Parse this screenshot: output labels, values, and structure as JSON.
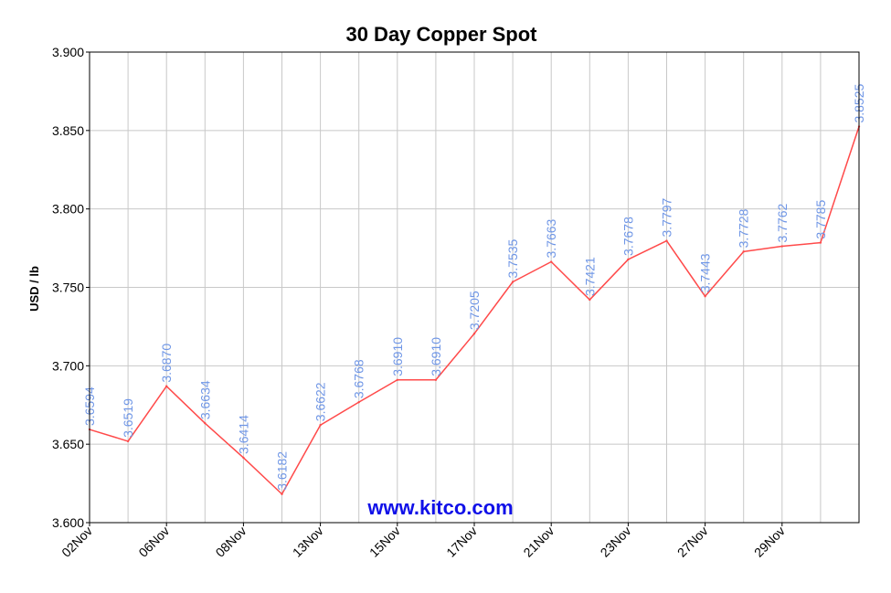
{
  "chart_data": {
    "type": "line",
    "title": "30 Day Copper Spot",
    "xlabel": "",
    "ylabel": "USD / lb",
    "watermark": "www.kitco.com",
    "ylim": [
      3.6,
      3.9
    ],
    "y_ticks": [
      "3.900",
      "3.850",
      "3.800",
      "3.750",
      "3.700",
      "3.650",
      "3.600"
    ],
    "x_tick_labels": [
      "02Nov",
      "06Nov",
      "08Nov",
      "13Nov",
      "15Nov",
      "17Nov",
      "21Nov",
      "23Nov",
      "27Nov",
      "29Nov"
    ],
    "grid": true,
    "series": [
      {
        "values": [
          3.6594,
          3.6519,
          3.687,
          3.6634,
          3.6414,
          3.6182,
          3.6622,
          3.6768,
          3.691,
          3.691,
          3.7205,
          3.7535,
          3.7663,
          3.7421,
          3.7678,
          3.7797,
          3.7443,
          3.7728,
          3.7762,
          3.7785,
          3.8525
        ],
        "labels": [
          "3.6594",
          "3.6519",
          "3.6870",
          "3.6634",
          "3.6414",
          "3.6182",
          "3.6622",
          "3.6768",
          "3.6910",
          "3.6910",
          "3.7205",
          "3.7535",
          "3.7663",
          "3.7421",
          "3.7678",
          "3.7797",
          "3.7443",
          "3.7728",
          "3.7762",
          "3.7785",
          "3.8525"
        ]
      }
    ],
    "colors": {
      "line": "#ff4a4a",
      "data_label": "#6f96e6",
      "grid": "#c8c8c8",
      "watermark": "#1010e8"
    }
  }
}
